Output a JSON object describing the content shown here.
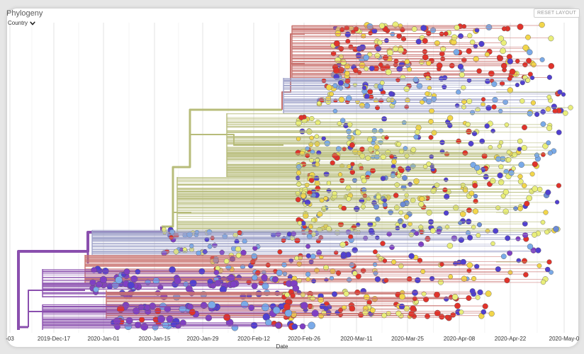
{
  "panel": {
    "title": "Phylogeny",
    "color_by_label": "Country",
    "reset_label": "RESET LAYOUT"
  },
  "chart_data": {
    "type": "scatter",
    "subtype": "phylogenetic-tree",
    "xlabel": "Date",
    "ylabel": "",
    "tick_labels": [
      "-03",
      "2019-Dec-17",
      "2020-Jan-01",
      "2020-Jan-15",
      "2020-Jan-29",
      "2020-Feb-12",
      "2020-Feb-26",
      "2020-Mar-11",
      "2020-Mar-25",
      "2020-Apr-08",
      "2020-Apr-22",
      "2020-May-0"
    ],
    "xlim": [
      "2019-Dec-03",
      "2020-May-06"
    ],
    "grid": true,
    "tip_colors": [
      "#e0332b",
      "#f2d64b",
      "#e9ee7a",
      "#5140d0",
      "#7f3fc4",
      "#7aaae8",
      "#f0a030",
      "#8ccfd0",
      "#6b8bd6"
    ],
    "branch_colors": [
      "#8a4fae",
      "#b7bc7a",
      "#c9736f",
      "#9ea2c9",
      "#c8a070"
    ]
  }
}
